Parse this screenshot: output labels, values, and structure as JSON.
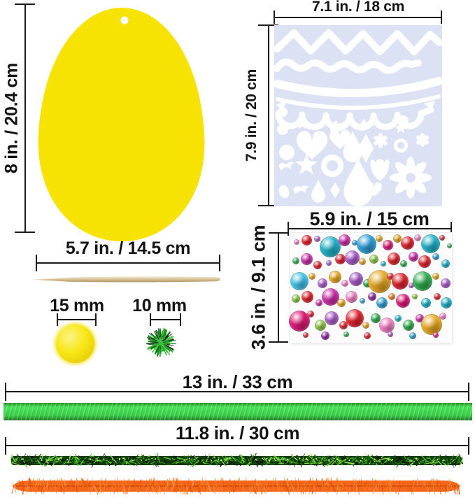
{
  "figure": {
    "type": "craft-kit-dimensions-diagram",
    "items": {
      "egg": {
        "name": "yellow egg cutout",
        "height_label": {
          "pre": "8 in. / ",
          "bold": "20.4",
          "post": " cm"
        },
        "color": "#f6e203",
        "hole_color": "#ffffff"
      },
      "stencil": {
        "name": "easter pattern stencil sheet",
        "width_label": {
          "pre": "7.1 in. / ",
          "bold": "18",
          "post": " cm"
        },
        "height_label": {
          "pre": "7.9 in. / ",
          "bold": "20",
          "post": " cm"
        },
        "sheet_color": "#dce2f4",
        "shape_color": "#ffffff"
      },
      "stick": {
        "name": "wooden stylus stick",
        "length_label": {
          "pre": "5.7 in. / ",
          "bold": "14.5",
          "post": " cm"
        },
        "color": "#d9c49c"
      },
      "pom_yellow": {
        "name": "yellow pom pom",
        "size_label": {
          "pre": "15 mm",
          "bold": "",
          "post": ""
        },
        "color": "#f7e714"
      },
      "pom_green": {
        "name": "green glitter pom pom",
        "size_label": {
          "pre": "10 mm",
          "bold": "",
          "post": ""
        },
        "color": "#3bbf3e",
        "strand_colors": [
          "#2ea834",
          "#4ed24a",
          "#0d5c14",
          "#1b8f24",
          "#232323"
        ]
      },
      "gem_sheet": {
        "name": "rhinestone gem sticker sheet",
        "width_label": {
          "pre": "5.9 in. / ",
          "bold": "15",
          "post": " cm"
        },
        "height_label": {
          "pre": "3.6 in. / ",
          "bold": "9.1",
          "post": " cm"
        }
      },
      "ribbon": {
        "name": "green ribbon",
        "length_label": {
          "pre": "13 in. / ",
          "bold": "33",
          "post": " cm"
        },
        "color": "#3fd94e"
      },
      "pipes": {
        "name": "pipe cleaners",
        "length_label": {
          "pre": "11.8 in. / ",
          "bold": "30",
          "post": " cm"
        },
        "tinsel_base": "#123d0b",
        "tinsel_colors": [
          "#0a3306",
          "#145410",
          "#1f7a14",
          "#39a81e",
          "#63d42f",
          "#93ef55",
          "#101c0a",
          "#060606"
        ],
        "chenille_base": "#f4661a",
        "chenille_core": "#bf4305",
        "chenille_colors": [
          "#ff8a33",
          "#f96f15",
          "#e85a08",
          "#ffa35c",
          "#d94d04",
          "#ff7b22"
        ]
      }
    },
    "measure_color": "#1b1b1b"
  },
  "gems": {
    "palette": {
      "red": "#e3242f",
      "crimson": "#e01a78",
      "magenta": "#cc2fa9",
      "pink": "#f37ec2",
      "blue": "#2f9fd8",
      "teal": "#1fb3c9",
      "skyblue": "#42c3ea",
      "green": "#2fae4e",
      "lime": "#8bc540",
      "gold": "#e9a823",
      "orange": "#ef7d23",
      "purple": "#8e2f9e",
      "violet": "#a95ccb"
    },
    "items": [
      [
        10,
        13,
        8,
        "pink"
      ],
      [
        24,
        10,
        15,
        "red"
      ],
      [
        39,
        8,
        9,
        "violet"
      ],
      [
        58,
        20,
        30,
        "teal"
      ],
      [
        78,
        10,
        17,
        "magenta"
      ],
      [
        93,
        14,
        8,
        "blue"
      ],
      [
        110,
        16,
        28,
        "blue"
      ],
      [
        128,
        8,
        10,
        "gold"
      ],
      [
        140,
        17,
        15,
        "crimson"
      ],
      [
        154,
        8,
        12,
        "gold"
      ],
      [
        168,
        14,
        19,
        "red"
      ],
      [
        183,
        7,
        10,
        "pink"
      ],
      [
        201,
        15,
        27,
        "teal"
      ],
      [
        218,
        7,
        8,
        "red"
      ],
      [
        228,
        18,
        7,
        "green"
      ],
      [
        9,
        40,
        10,
        "green"
      ],
      [
        24,
        37,
        17,
        "magenta"
      ],
      [
        40,
        46,
        12,
        "red"
      ],
      [
        56,
        43,
        8,
        "violet"
      ],
      [
        72,
        37,
        15,
        "red"
      ],
      [
        89,
        35,
        21,
        "violet"
      ],
      [
        104,
        41,
        10,
        "gold"
      ],
      [
        120,
        37,
        13,
        "lime"
      ],
      [
        134,
        44,
        8,
        "teal"
      ],
      [
        149,
        37,
        18,
        "red"
      ],
      [
        163,
        44,
        10,
        "green"
      ],
      [
        177,
        34,
        14,
        "magenta"
      ],
      [
        193,
        41,
        18,
        "red"
      ],
      [
        209,
        34,
        10,
        "blue"
      ],
      [
        223,
        44,
        12,
        "teal"
      ],
      [
        14,
        69,
        26,
        "skyblue"
      ],
      [
        32,
        62,
        10,
        "gold"
      ],
      [
        47,
        72,
        14,
        "violet"
      ],
      [
        65,
        63,
        18,
        "gold"
      ],
      [
        79,
        72,
        10,
        "pink"
      ],
      [
        95,
        66,
        20,
        "violet"
      ],
      [
        111,
        72,
        12,
        "green"
      ],
      [
        128,
        69,
        33,
        "gold"
      ],
      [
        144,
        62,
        10,
        "red"
      ],
      [
        158,
        69,
        24,
        "red"
      ],
      [
        174,
        75,
        8,
        "violet"
      ],
      [
        190,
        69,
        28,
        "green"
      ],
      [
        209,
        62,
        10,
        "gold"
      ],
      [
        223,
        72,
        14,
        "violet"
      ],
      [
        9,
        94,
        12,
        "lime"
      ],
      [
        25,
        91,
        17,
        "red"
      ],
      [
        42,
        100,
        10,
        "magenta"
      ],
      [
        58,
        91,
        25,
        "magenta"
      ],
      [
        74,
        100,
        12,
        "gold"
      ],
      [
        88,
        91,
        17,
        "pink"
      ],
      [
        104,
        97,
        8,
        "blue"
      ],
      [
        118,
        91,
        12,
        "purple"
      ],
      [
        132,
        100,
        16,
        "blue"
      ],
      [
        146,
        91,
        10,
        "orange"
      ],
      [
        162,
        97,
        20,
        "crimson"
      ],
      [
        179,
        91,
        8,
        "lime"
      ],
      [
        195,
        100,
        14,
        "teal"
      ],
      [
        211,
        91,
        10,
        "red"
      ],
      [
        224,
        100,
        16,
        "teal"
      ],
      [
        14,
        126,
        30,
        "crimson"
      ],
      [
        30,
        116,
        10,
        "red"
      ],
      [
        44,
        132,
        16,
        "lime"
      ],
      [
        60,
        122,
        20,
        "violet"
      ],
      [
        77,
        132,
        12,
        "red"
      ],
      [
        93,
        122,
        26,
        "red"
      ],
      [
        109,
        132,
        10,
        "gold"
      ],
      [
        123,
        122,
        14,
        "green"
      ],
      [
        139,
        132,
        22,
        "pink"
      ],
      [
        155,
        122,
        10,
        "teal"
      ],
      [
        170,
        132,
        16,
        "green"
      ],
      [
        186,
        122,
        12,
        "magenta"
      ],
      [
        203,
        131,
        30,
        "gold"
      ],
      [
        219,
        119,
        10,
        "pink"
      ],
      [
        23,
        146,
        8,
        "red"
      ],
      [
        51,
        147,
        12,
        "purple"
      ],
      [
        81,
        145,
        8,
        "green"
      ],
      [
        111,
        147,
        10,
        "red"
      ],
      [
        144,
        145,
        8,
        "violet"
      ],
      [
        176,
        147,
        10,
        "blue"
      ],
      [
        209,
        146,
        8,
        "crimson"
      ]
    ]
  }
}
